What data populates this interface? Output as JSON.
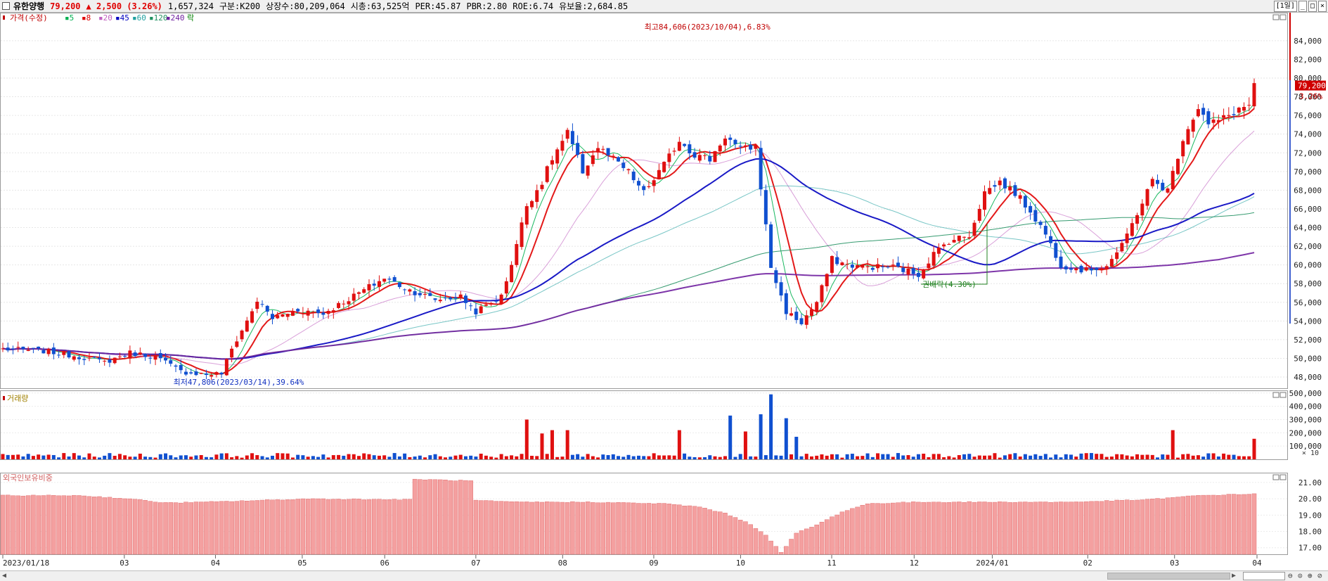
{
  "header": {
    "name": "유한양행",
    "price": "79,200",
    "change": "▲ 2,500 (3.26%)",
    "volume": "1,657,324",
    "market": "구분:K200",
    "shares": "상장수:80,209,064",
    "mcap": "시총:63,525억",
    "per": "PER:45.87",
    "pbr": "PBR:2.80",
    "roe": "ROE:6.74",
    "float": "유보율:2,684.85",
    "period_btn": "[1일]"
  },
  "legend": {
    "price_label": "가격(수정)",
    "ma": [
      "5",
      "8",
      "20",
      "45",
      "60",
      "120",
      "240"
    ],
    "ma_colors": [
      "#00b050",
      "#e00000",
      "#c060c0",
      "#0000c0",
      "#20a0a0",
      "#209060",
      "#7020a0"
    ],
    "mark": "락",
    "volume_label": "거래량",
    "foreign_label": "외국인보유비중",
    "volume_unit": "× 10"
  },
  "annotations": {
    "high": "최고84,606(2023/10/04),6.83%",
    "low": "최저47,806(2023/03/14),39.64%",
    "dividend": "권배락(4.30%)",
    "last_price": "79,200",
    "last_pct": "3.26%"
  },
  "chart_data": [
    {
      "type": "candlestick",
      "title": "가격(수정)",
      "x_ticks": [
        "2023/01/18",
        "03",
        "04",
        "05",
        "06",
        "07",
        "08",
        "09",
        "10",
        "11",
        "12",
        "2024/01",
        "02",
        "03",
        "04"
      ],
      "ylim": [
        46800,
        87000
      ],
      "y_ticks": [
        48000,
        50000,
        52000,
        54000,
        56000,
        58000,
        60000,
        62000,
        64000,
        66000,
        68000,
        70000,
        72000,
        74000,
        76000,
        78000,
        80000,
        82000,
        84000
      ],
      "y_tick_labels": [
        "48,000",
        "50,000",
        "52,000",
        "54,000",
        "56,000",
        "58,000",
        "60,000",
        "62,000",
        "64,000",
        "66,000",
        "68,000",
        "70,000",
        "72,000",
        "74,000",
        "76,000",
        "78,000",
        "80,000",
        "82,000",
        "84,000"
      ],
      "close_path": [
        [
          0,
          51000
        ],
        [
          8,
          50800
        ],
        [
          15,
          50200
        ],
        [
          20,
          49600
        ],
        [
          25,
          50600
        ],
        [
          30,
          50200
        ],
        [
          35,
          48600
        ],
        [
          40,
          48300
        ],
        [
          43,
          48400
        ],
        [
          45,
          51000
        ],
        [
          48,
          54000
        ],
        [
          50,
          56200
        ],
        [
          53,
          54300
        ],
        [
          58,
          55200
        ],
        [
          63,
          54800
        ],
        [
          70,
          57000
        ],
        [
          75,
          58600
        ],
        [
          80,
          57300
        ],
        [
          85,
          56300
        ],
        [
          90,
          56600
        ],
        [
          93,
          55000
        ],
        [
          98,
          56600
        ],
        [
          100,
          60200
        ],
        [
          103,
          66400
        ],
        [
          106,
          68900
        ],
        [
          108,
          71400
        ],
        [
          111,
          74100
        ],
        [
          114,
          70000
        ],
        [
          117,
          72600
        ],
        [
          120,
          71300
        ],
        [
          123,
          69900
        ],
        [
          126,
          67700
        ],
        [
          130,
          70700
        ],
        [
          133,
          73400
        ],
        [
          136,
          71800
        ],
        [
          139,
          71300
        ],
        [
          142,
          73800
        ],
        [
          145,
          72300
        ],
        [
          148,
          72700
        ],
        [
          151,
          59800
        ],
        [
          154,
          55000
        ],
        [
          157,
          53800
        ],
        [
          160,
          56000
        ],
        [
          163,
          60600
        ],
        [
          166,
          60000
        ],
        [
          170,
          59800
        ],
        [
          175,
          59800
        ],
        [
          180,
          59000
        ],
        [
          183,
          61200
        ],
        [
          186,
          62600
        ],
        [
          190,
          63200
        ],
        [
          193,
          67800
        ],
        [
          196,
          68900
        ],
        [
          199,
          67700
        ],
        [
          202,
          65800
        ],
        [
          205,
          63300
        ],
        [
          208,
          60000
        ],
        [
          213,
          59400
        ],
        [
          217,
          60000
        ],
        [
          220,
          62000
        ],
        [
          223,
          65600
        ],
        [
          226,
          69000
        ],
        [
          229,
          68000
        ],
        [
          232,
          73600
        ],
        [
          235,
          76900
        ],
        [
          237,
          75000
        ],
        [
          240,
          75700
        ],
        [
          243,
          76700
        ],
        [
          245,
          77100
        ],
        [
          246,
          79200
        ]
      ],
      "volume": {
        "label": "거래량",
        "ylim": [
          0,
          520000
        ],
        "y_ticks": [
          100000,
          200000,
          300000,
          400000,
          500000
        ],
        "y_tick_labels": [
          "100,000",
          "200,000",
          "300,000",
          "400,000",
          "500,000"
        ],
        "spikes": [
          [
            103,
            300000
          ],
          [
            106,
            195000
          ],
          [
            108,
            220000
          ],
          [
            111,
            220000
          ],
          [
            133,
            220000
          ],
          [
            143,
            330000
          ],
          [
            146,
            210000
          ],
          [
            149,
            340000
          ],
          [
            151,
            490000
          ],
          [
            154,
            310000
          ],
          [
            156,
            170000
          ],
          [
            230,
            220000
          ],
          [
            246,
            155000
          ]
        ],
        "base": 25000
      },
      "foreign_ratio": {
        "label": "외국인보유비중",
        "ylim": [
          16.6,
          21.6
        ],
        "y_ticks": [
          17,
          18,
          19,
          20,
          21
        ],
        "y_tick_labels": [
          "17.00",
          "18.00",
          "19.00",
          "20.00",
          "21.00"
        ],
        "path": [
          [
            0,
            20.2
          ],
          [
            15,
            20.2
          ],
          [
            25,
            20.0
          ],
          [
            32,
            19.75
          ],
          [
            40,
            19.8
          ],
          [
            60,
            20.0
          ],
          [
            80,
            19.95
          ],
          [
            81,
            21.2
          ],
          [
            92,
            21.1
          ],
          [
            93,
            19.9
          ],
          [
            100,
            19.8
          ],
          [
            115,
            19.8
          ],
          [
            130,
            19.7
          ],
          [
            137,
            19.5
          ],
          [
            142,
            19.1
          ],
          [
            146,
            18.6
          ],
          [
            150,
            17.8
          ],
          [
            153,
            16.7
          ],
          [
            156,
            17.9
          ],
          [
            160,
            18.4
          ],
          [
            165,
            19.2
          ],
          [
            170,
            19.7
          ],
          [
            180,
            19.8
          ],
          [
            190,
            19.8
          ],
          [
            210,
            19.8
          ],
          [
            225,
            19.95
          ],
          [
            235,
            20.2
          ],
          [
            246,
            20.3
          ]
        ]
      }
    }
  ]
}
